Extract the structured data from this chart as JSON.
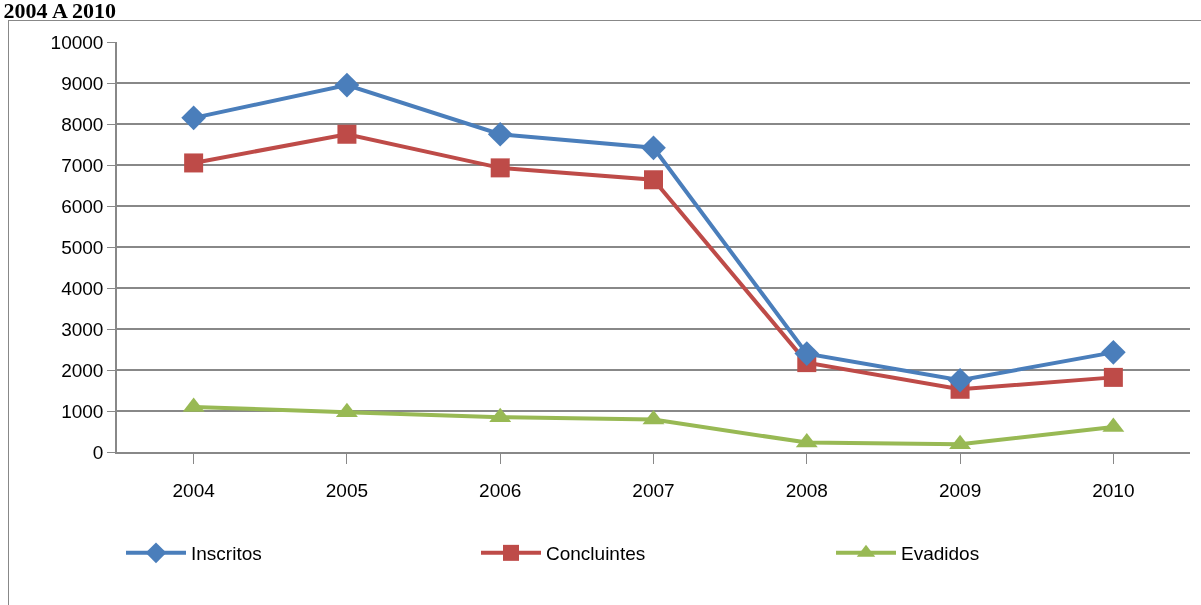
{
  "chart_data": {
    "type": "line",
    "title": "2004 A 2010",
    "categories": [
      "2004",
      "2005",
      "2006",
      "2007",
      "2008",
      "2009",
      "2010"
    ],
    "series": [
      {
        "name": "Inscritos",
        "color": "#4a7ebb",
        "marker": "diamond",
        "values": [
          8150,
          8950,
          7750,
          7420,
          2400,
          1750,
          2430
        ]
      },
      {
        "name": "Concluintes",
        "color": "#be4b48",
        "marker": "square",
        "values": [
          7050,
          7750,
          6930,
          6640,
          2180,
          1530,
          1820
        ]
      },
      {
        "name": "Evadidos",
        "color": "#98b954",
        "marker": "triangle",
        "values": [
          1100,
          970,
          850,
          790,
          230,
          190,
          610
        ]
      }
    ],
    "ylim": [
      0,
      10000
    ],
    "yticks": [
      0,
      1000,
      2000,
      3000,
      4000,
      5000,
      6000,
      7000,
      8000,
      9000,
      10000
    ],
    "grid": "y",
    "legend": "bottom"
  }
}
